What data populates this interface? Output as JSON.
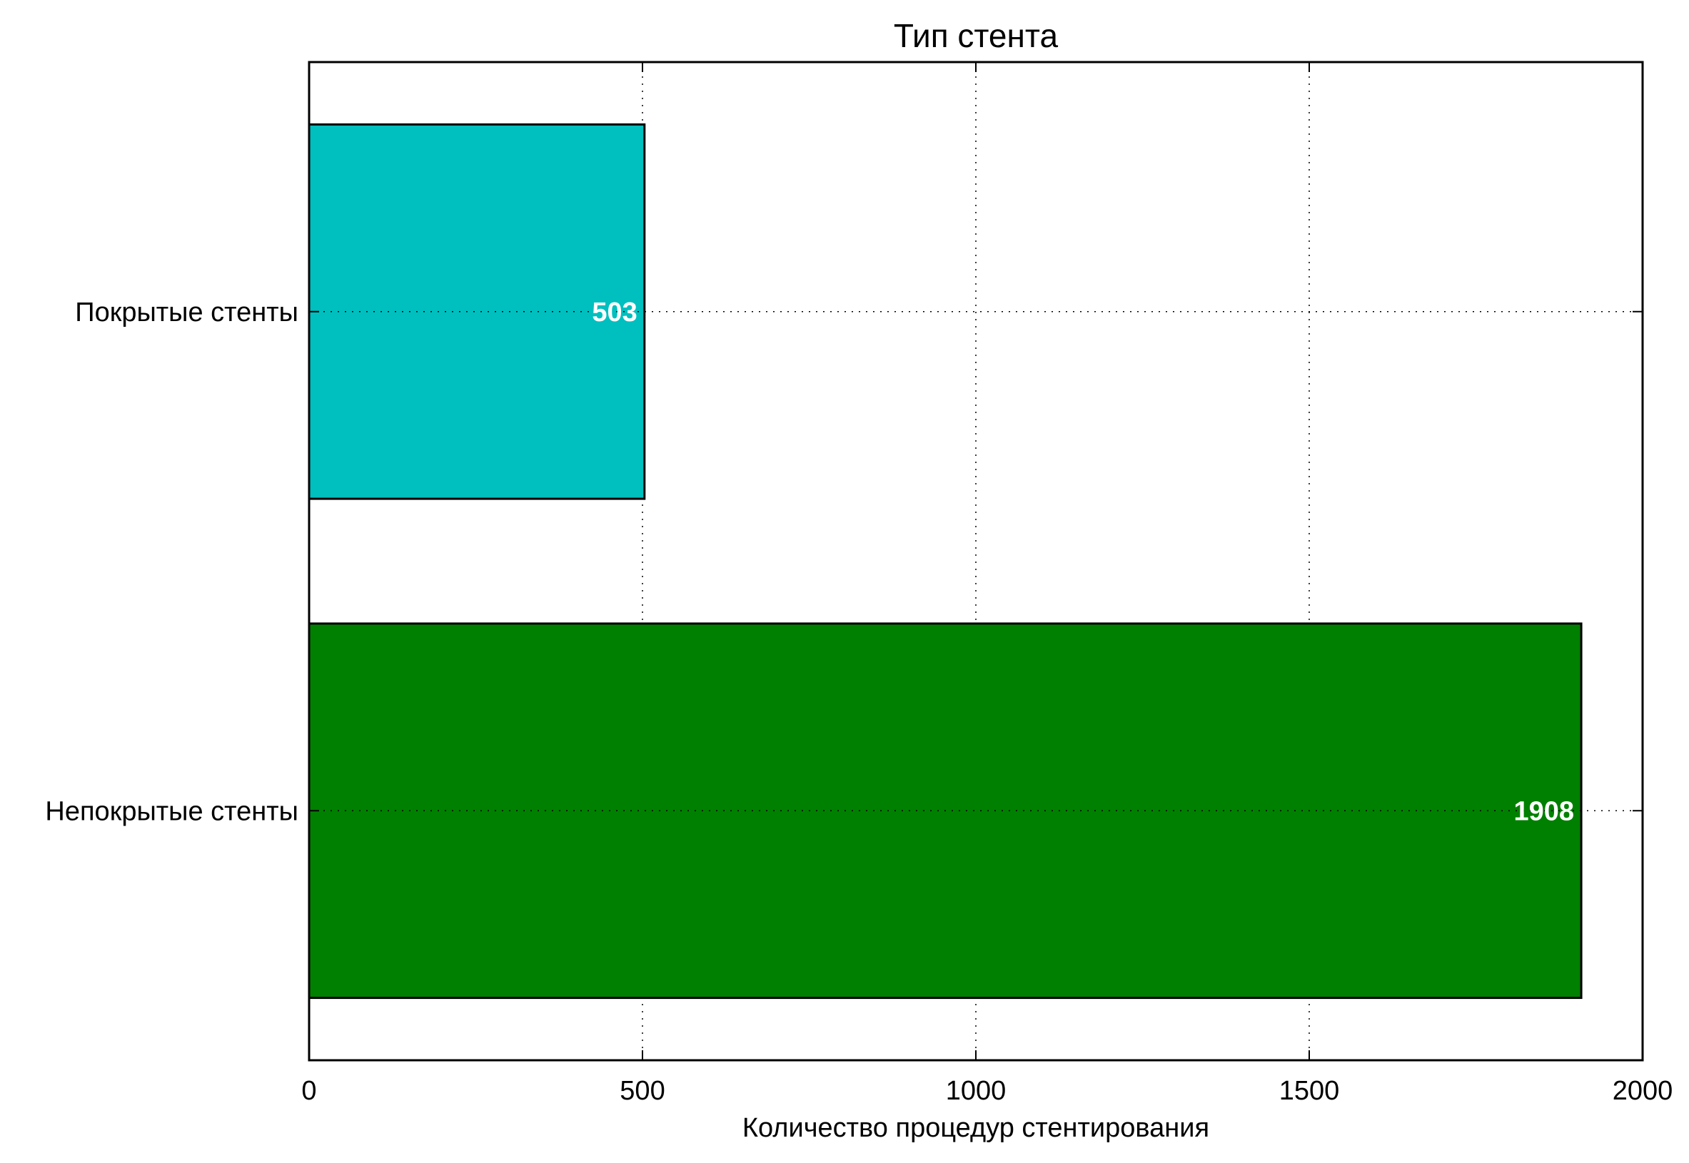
{
  "chart_data": {
    "type": "bar",
    "orientation": "horizontal",
    "title": "Тип стента",
    "xlabel": "Количество процедур стентирования",
    "ylabel": "",
    "xlim": [
      0,
      2000
    ],
    "xticks": [
      "0",
      "500",
      "1000",
      "1500",
      "2000"
    ],
    "grid": true,
    "categories": [
      "Покрытые стенты",
      "Непокрытые стенты"
    ],
    "values": [
      503,
      1908
    ],
    "data_labels": [
      "503",
      "1908"
    ],
    "colors": [
      "#00bfbf",
      "#008000"
    ]
  }
}
